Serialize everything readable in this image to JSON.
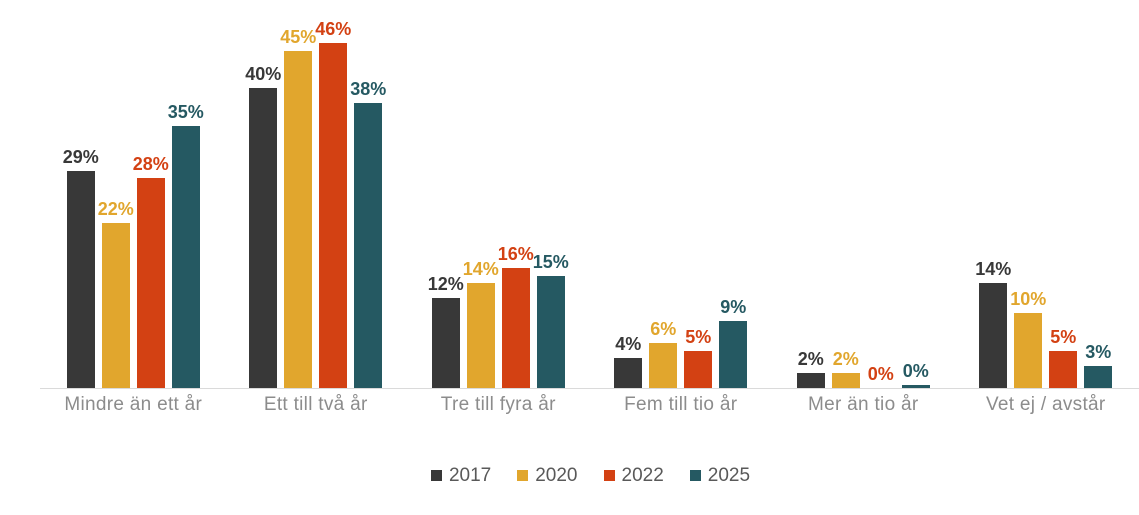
{
  "chart_data": {
    "type": "bar",
    "title": "",
    "categories": [
      "Mindre än ett år",
      "Ett till två år",
      "Tre till fyra år",
      "Fem till tio år",
      "Mer än tio år",
      "Vet ej / avstår"
    ],
    "series": [
      {
        "name": "2017",
        "color": "#383838",
        "values": [
          29,
          40,
          12,
          4,
          2,
          14
        ]
      },
      {
        "name": "2020",
        "color": "#E1A62D",
        "values": [
          22,
          45,
          14,
          6,
          2,
          10
        ]
      },
      {
        "name": "2022",
        "color": "#D34113",
        "values": [
          28,
          46,
          16,
          5,
          0,
          5
        ]
      },
      {
        "name": "2025",
        "color": "#255962",
        "values": [
          35,
          38,
          15,
          9,
          0,
          3
        ]
      }
    ],
    "value_suffix": "%",
    "data_labels": true,
    "xlabel": "",
    "ylabel": "",
    "ylim": [
      0,
      50
    ],
    "grid": false,
    "y_axis_visible": false,
    "legend_position": "bottom"
  },
  "style": {
    "axis_line_color": "#DADADA",
    "category_label_color": "#8C8C8C",
    "legend_text_color": "#595959",
    "background": "#FFFFFF"
  }
}
